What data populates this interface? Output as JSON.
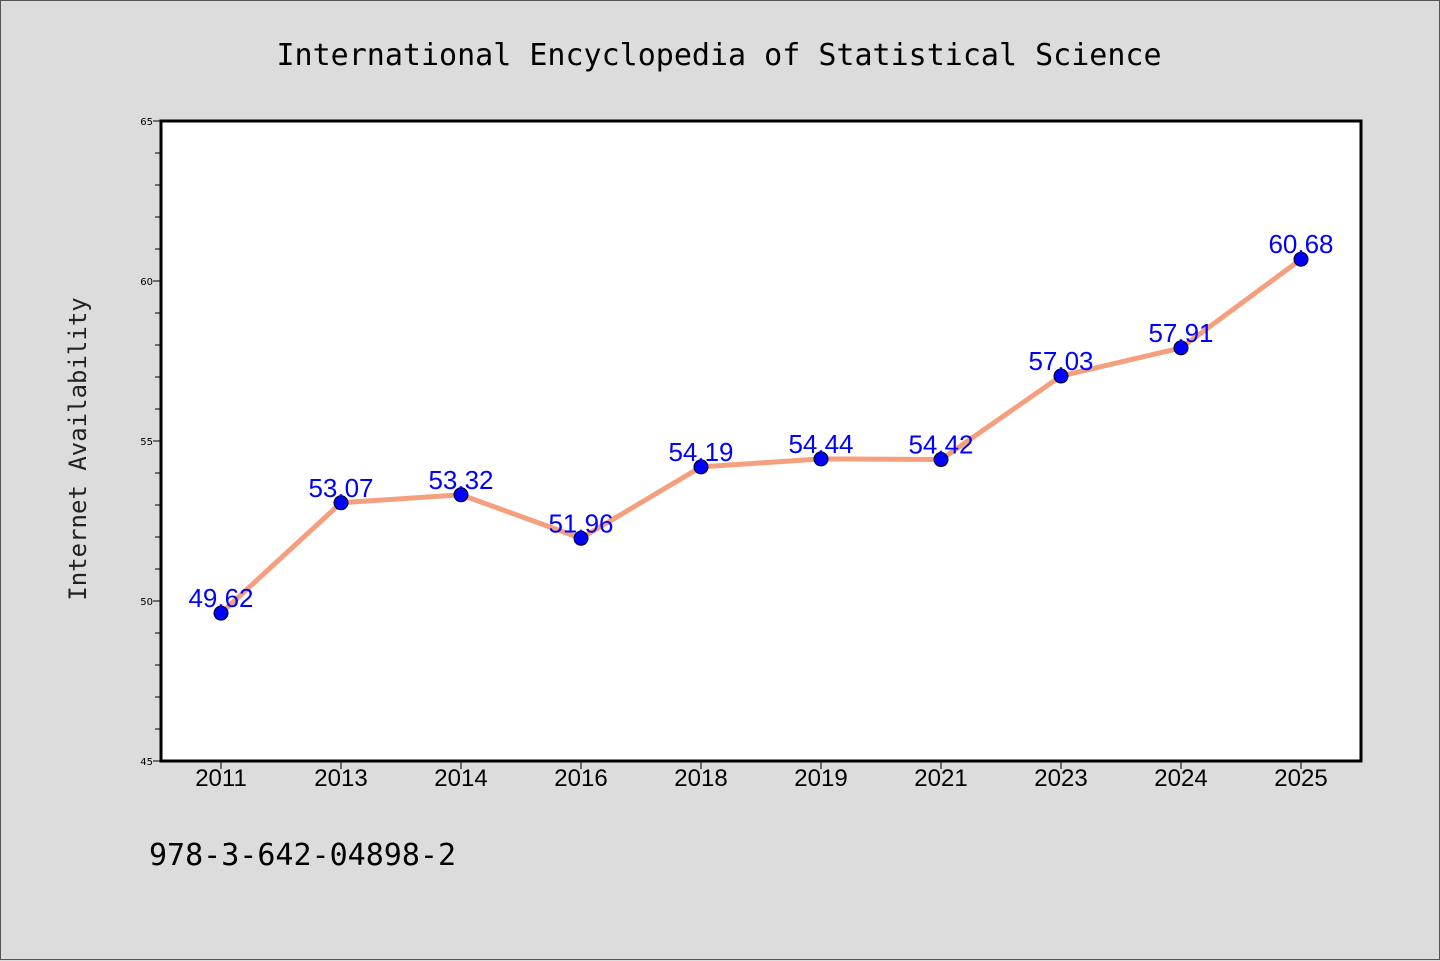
{
  "chart_data": {
    "type": "line",
    "title": "International Encyclopedia of Statistical Science",
    "xlabel": "",
    "ylabel": "Internet Availability",
    "categories": [
      "2011",
      "2013",
      "2014",
      "2016",
      "2018",
      "2019",
      "2021",
      "2023",
      "2024",
      "2025"
    ],
    "series": [
      {
        "values": [
          49.62,
          53.07,
          53.32,
          51.96,
          54.19,
          54.44,
          54.42,
          57.03,
          57.91,
          60.68
        ],
        "line_color": "#f4a07e",
        "marker_color": "#0000ff"
      }
    ],
    "data_labels": [
      "49.62",
      "53.07",
      "53.32",
      "51.96",
      "54.19",
      "54.44",
      "54.42",
      "57.03",
      "57.91",
      "60.68"
    ],
    "ylim": [
      45,
      65
    ],
    "yticks": [
      "45",
      "50",
      "55",
      "60",
      "65"
    ],
    "grid": false,
    "legend": "none"
  },
  "footnote": "978-3-642-04898-2",
  "colors": {
    "background": "#dcdcdc",
    "plot_background": "#ffffff",
    "line": "#f4a07e",
    "marker": "#0000ff",
    "data_label": "#0000ff"
  }
}
